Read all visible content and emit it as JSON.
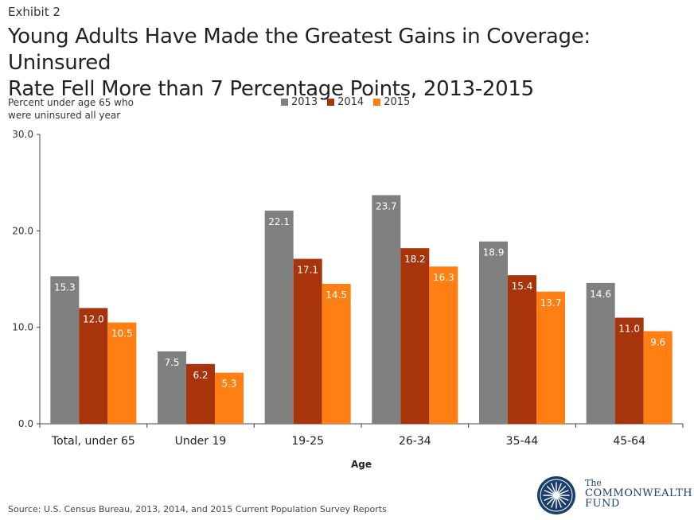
{
  "header": {
    "exhibit": "Exhibit 2",
    "title_line1": "Young Adults Have Made the Greatest Gains in Coverage: Uninsured",
    "title_line2": "Rate Fell More than 7 Percentage Points, 2013-2015"
  },
  "chart_data": {
    "type": "bar",
    "title": "Young Adults Have Made the Greatest Gains in Coverage: Uninsured Rate Fell More than 7 Percentage Points, 2013-2015",
    "ylabel_line1": "Percent under age 65 who",
    "ylabel_line2": "were uninsured all year",
    "xlabel": "Age",
    "ylim": [
      0,
      30
    ],
    "yticks": [
      "0.0",
      "10.0",
      "20.0",
      "30.0"
    ],
    "categories": [
      "Total, under 65",
      "Under 19",
      "19-25",
      "26-34",
      "35-44",
      "45-64"
    ],
    "series": [
      {
        "name": "2013",
        "color": "#808080",
        "values": [
          15.3,
          7.5,
          22.1,
          23.7,
          18.9,
          14.6
        ],
        "labels": [
          "15.3",
          "7.5",
          "22.1",
          "23.7",
          "18.9",
          "14.6"
        ]
      },
      {
        "name": "2014",
        "color": "#a8340c",
        "values": [
          12.0,
          6.2,
          17.1,
          18.2,
          15.4,
          11.0
        ],
        "labels": [
          "12.0",
          "6.2",
          "17.1",
          "18.2",
          "15.4",
          "11.0"
        ]
      },
      {
        "name": "2015",
        "color": "#ff7f13",
        "values": [
          10.5,
          5.3,
          14.5,
          16.3,
          13.7,
          9.6
        ],
        "labels": [
          "10.5",
          "5.3",
          "14.5",
          "16.3",
          "13.7",
          "9.6"
        ]
      }
    ],
    "legend_position": "top"
  },
  "footer": {
    "source": "Source: U.S. Census Bureau, 2013, 2014, and 2015 Current Population Survey Reports"
  },
  "logo": {
    "the": "The",
    "line1": "COMMONWEALTH",
    "line2": "FUND",
    "color": "#1a3d6e"
  }
}
